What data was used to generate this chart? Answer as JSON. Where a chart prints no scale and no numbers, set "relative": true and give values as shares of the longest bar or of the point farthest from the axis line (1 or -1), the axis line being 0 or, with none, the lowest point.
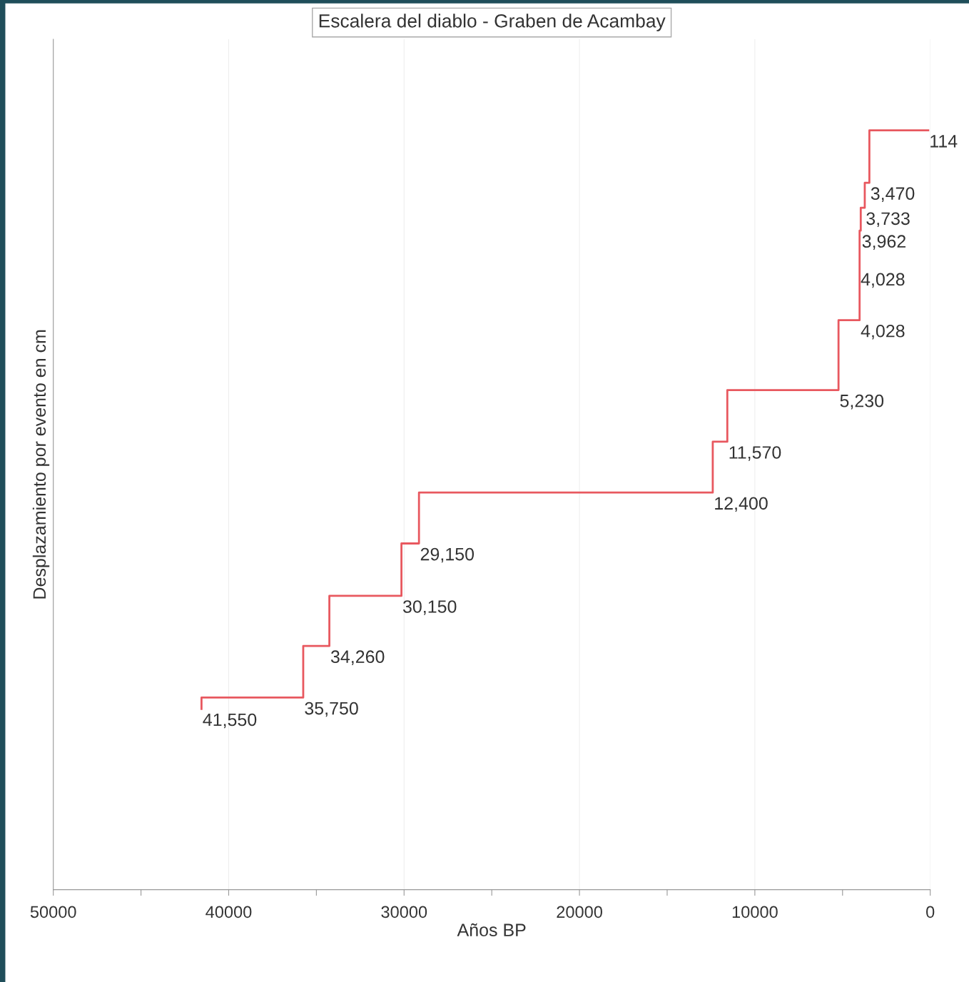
{
  "chart_data": {
    "type": "step",
    "title": "Escalera del diablo - Graben de Acambay",
    "xlabel": "Años BP",
    "ylabel": "Desplazamiento por evento en cm",
    "relative": true,
    "x": [
      41550,
      41550,
      35750,
      34260,
      30150,
      29150,
      12400,
      11570,
      5230,
      4028,
      4028,
      3962,
      3733,
      3470,
      114
    ],
    "series": [
      {
        "color": "#e8585f",
        "values": [
          0.238,
          0.253,
          0.321,
          0.387,
          0.456,
          0.523,
          0.59,
          0.658,
          0.75,
          0.818,
          0.868,
          0.898,
          0.931,
          1.0,
          1.0
        ]
      }
    ],
    "xlim": [
      50000,
      0
    ],
    "xticks": [
      50000,
      {
        "value": 45000,
        "label": null
      },
      40000,
      {
        "value": 35000,
        "label": null
      },
      30000,
      {
        "value": 25000,
        "label": null
      },
      20000,
      {
        "value": 15000,
        "label": null
      },
      10000,
      {
        "value": 5000,
        "label": null
      },
      0
    ],
    "grid": "x",
    "line_style": "solid",
    "annotations": [
      {
        "text": "41,550",
        "x": 41550,
        "y": 0.238
      },
      {
        "text": "35,750",
        "x": 35750,
        "y": 0.253
      },
      {
        "text": "34,260",
        "x": 34260,
        "y": 0.321
      },
      {
        "text": "30,150",
        "x": 30150,
        "y": 0.387
      },
      {
        "text": "29,150",
        "x": 29150,
        "y": 0.456
      },
      {
        "text": "12,400",
        "x": 12400,
        "y": 0.523
      },
      {
        "text": "11,570",
        "x": 11570,
        "y": 0.59
      },
      {
        "text": "5,230",
        "x": 5230,
        "y": 0.658
      },
      {
        "text": "4,028",
        "x": 4028,
        "y": 0.75
      },
      {
        "text": "4,028",
        "x": 4028,
        "y": 0.818
      },
      {
        "text": "3,962",
        "x": 3962,
        "y": 0.868
      },
      {
        "text": "3,733",
        "x": 3733,
        "y": 0.898
      },
      {
        "text": "3,470",
        "x": 3470,
        "y": 0.931
      },
      {
        "text": "114",
        "x": 114,
        "y": 1.0
      }
    ]
  }
}
